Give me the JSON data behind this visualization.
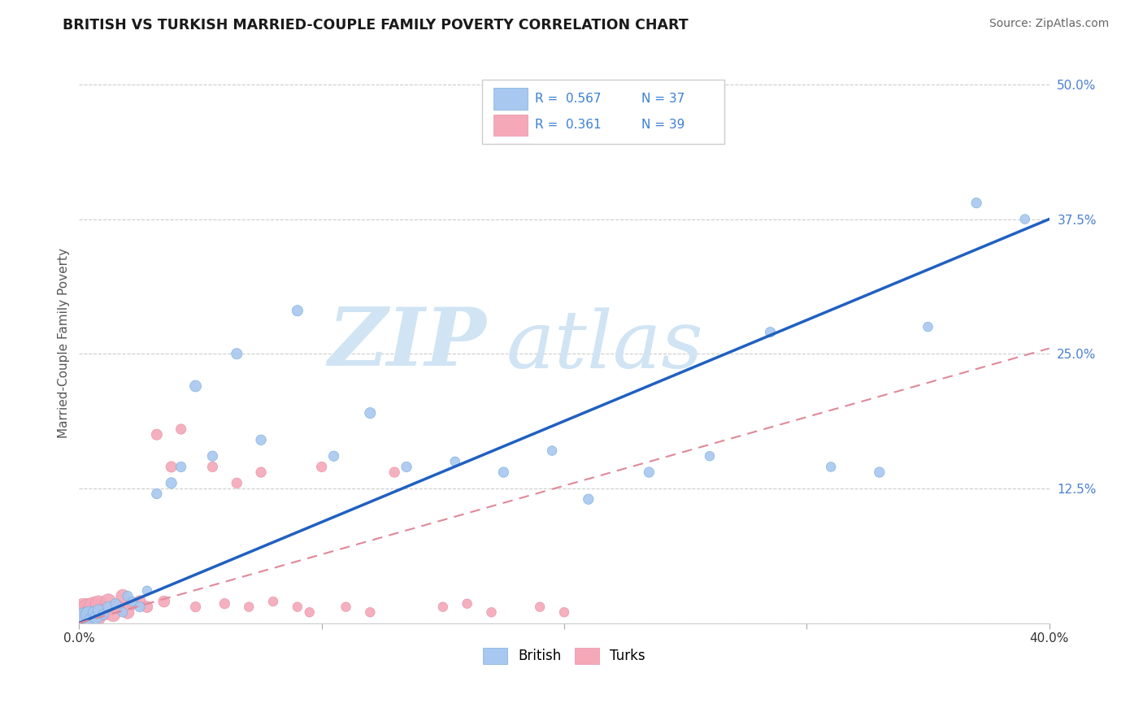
{
  "title": "BRITISH VS TURKISH MARRIED-COUPLE FAMILY POVERTY CORRELATION CHART",
  "source": "Source: ZipAtlas.com",
  "ylabel": "Married-Couple Family Poverty",
  "xlim": [
    0.0,
    0.4
  ],
  "ylim": [
    0.0,
    0.52
  ],
  "xtick_vals": [
    0.0,
    0.1,
    0.2,
    0.3,
    0.4
  ],
  "xtick_labels_show": {
    "0.0": "0.0%",
    "0.40": "40.0%"
  },
  "ytick_vals": [
    0.0,
    0.125,
    0.25,
    0.375,
    0.5
  ],
  "ytick_labels": [
    "",
    "12.5%",
    "25.0%",
    "37.5%",
    "50.0%"
  ],
  "british_color": "#a8c8f0",
  "british_edge_color": "#7aaedc",
  "turks_color": "#f4a8b8",
  "turks_edge_color": "#e890a8",
  "british_line_color": "#2060c0",
  "turks_line_color": "#e08898",
  "watermark_color": "#d0e4f4",
  "legend_R_british": "0.567",
  "legend_N_british": "37",
  "legend_R_turks": "0.361",
  "legend_N_turks": "39",
  "british_x": [
    0.002,
    0.004,
    0.005,
    0.006,
    0.007,
    0.008,
    0.01,
    0.012,
    0.015,
    0.018,
    0.02,
    0.022,
    0.025,
    0.028,
    0.032,
    0.038,
    0.042,
    0.048,
    0.055,
    0.065,
    0.075,
    0.09,
    0.105,
    0.12,
    0.135,
    0.155,
    0.175,
    0.195,
    0.21,
    0.235,
    0.26,
    0.285,
    0.31,
    0.33,
    0.35,
    0.37,
    0.39
  ],
  "british_y": [
    0.005,
    0.008,
    0.003,
    0.01,
    0.005,
    0.012,
    0.008,
    0.015,
    0.018,
    0.01,
    0.025,
    0.02,
    0.015,
    0.03,
    0.12,
    0.13,
    0.145,
    0.22,
    0.155,
    0.25,
    0.17,
    0.29,
    0.155,
    0.195,
    0.145,
    0.15,
    0.14,
    0.16,
    0.115,
    0.14,
    0.155,
    0.27,
    0.145,
    0.14,
    0.275,
    0.39,
    0.375
  ],
  "british_sizes": [
    300,
    200,
    150,
    100,
    120,
    100,
    80,
    90,
    80,
    70,
    80,
    70,
    80,
    70,
    80,
    90,
    80,
    100,
    80,
    90,
    80,
    90,
    80,
    90,
    80,
    70,
    80,
    70,
    80,
    80,
    70,
    80,
    70,
    80,
    70,
    80,
    70
  ],
  "turks_x": [
    0.001,
    0.002,
    0.003,
    0.004,
    0.005,
    0.006,
    0.007,
    0.008,
    0.01,
    0.012,
    0.014,
    0.016,
    0.018,
    0.02,
    0.022,
    0.025,
    0.028,
    0.032,
    0.035,
    0.038,
    0.042,
    0.048,
    0.055,
    0.06,
    0.065,
    0.07,
    0.075,
    0.08,
    0.09,
    0.095,
    0.1,
    0.11,
    0.12,
    0.13,
    0.15,
    0.16,
    0.17,
    0.19,
    0.2
  ],
  "turks_y": [
    0.005,
    0.01,
    0.003,
    0.012,
    0.008,
    0.015,
    0.005,
    0.018,
    0.01,
    0.02,
    0.008,
    0.015,
    0.025,
    0.01,
    0.018,
    0.02,
    0.015,
    0.175,
    0.02,
    0.145,
    0.18,
    0.015,
    0.145,
    0.018,
    0.13,
    0.015,
    0.14,
    0.02,
    0.015,
    0.01,
    0.145,
    0.015,
    0.01,
    0.14,
    0.015,
    0.018,
    0.01,
    0.015,
    0.01
  ],
  "turks_sizes": [
    900,
    600,
    500,
    400,
    350,
    300,
    250,
    200,
    200,
    180,
    160,
    150,
    140,
    130,
    120,
    110,
    100,
    90,
    100,
    90,
    80,
    80,
    80,
    80,
    80,
    70,
    80,
    70,
    70,
    70,
    80,
    70,
    70,
    80,
    70,
    70,
    70,
    70,
    70
  ],
  "brit_line_x0": 0.0,
  "brit_line_y0": 0.0,
  "brit_line_x1": 0.4,
  "brit_line_y1": 0.375,
  "turk_line_x0": 0.0,
  "turk_line_y0": 0.0,
  "turk_line_x1": 0.4,
  "turk_line_y1": 0.255
}
